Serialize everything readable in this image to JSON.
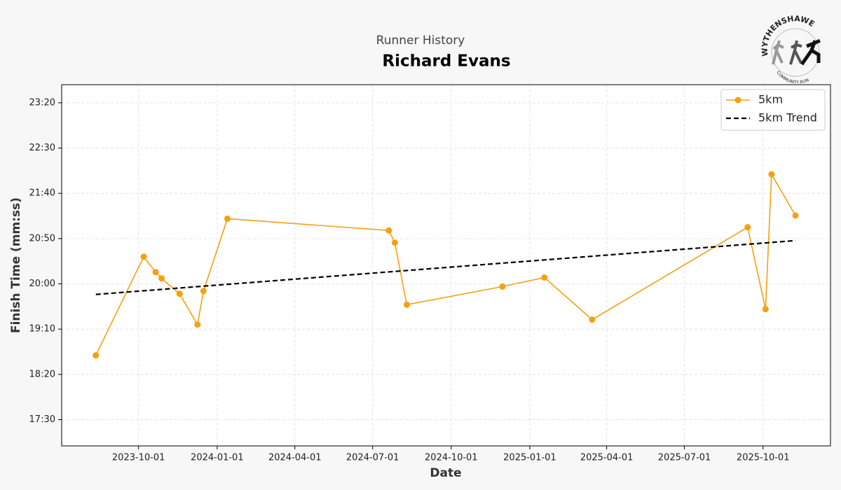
{
  "chart_data": {
    "type": "line",
    "subtitle": "Runner History",
    "title": "Richard Evans",
    "logo_text": "WYTHENSHAWE",
    "logo_subtext": "COMMUNITY RUN",
    "x_label": "Date",
    "y_label": "Finish Time (mm:ss)",
    "series": [
      {
        "name": "5km",
        "color": "#f5a00f",
        "style": "solid",
        "marker": true,
        "x": [
          "2023-08-12",
          "2023-10-07",
          "2023-10-21",
          "2023-10-28",
          "2023-11-18",
          "2023-12-09",
          "2023-12-16",
          "2024-01-13",
          "2024-07-20",
          "2024-07-27",
          "2024-08-10",
          "2024-11-30",
          "2025-01-18",
          "2025-03-15",
          "2025-09-13",
          "2025-10-04",
          "2025-10-11",
          "2025-11-08"
        ],
        "values": [
          1121,
          1230,
          1213,
          1206,
          1189,
          1155,
          1192,
          1272,
          1259,
          1245.5,
          1177,
          1197,
          1207,
          1160.5,
          1262.5,
          1172,
          1321,
          1275.5
        ]
      },
      {
        "name": "5km Trend",
        "color": "#000000",
        "style": "dashed",
        "marker": false,
        "x": [
          "2023-08-12",
          "2025-11-08"
        ],
        "values": [
          1188.3,
          1247.8
        ]
      }
    ],
    "xlim": [
      "2023-07-03",
      "2025-12-19"
    ],
    "xticks": [
      "2023-10-01",
      "2024-01-01",
      "2024-04-01",
      "2024-07-01",
      "2024-10-01",
      "2025-01-01",
      "2025-04-01",
      "2025-07-01",
      "2025-10-01"
    ],
    "ylim": [
      1021,
      1420
    ],
    "yticks": [
      {
        "value": 1050,
        "label": "17:30"
      },
      {
        "value": 1100,
        "label": "18:20"
      },
      {
        "value": 1150,
        "label": "19:10"
      },
      {
        "value": 1200,
        "label": "20:00"
      },
      {
        "value": 1250,
        "label": "20:50"
      },
      {
        "value": 1300,
        "label": "21:40"
      },
      {
        "value": 1350,
        "label": "22:30"
      },
      {
        "value": 1400,
        "label": "23:20"
      }
    ],
    "grid": true,
    "legend": "upper-right"
  }
}
